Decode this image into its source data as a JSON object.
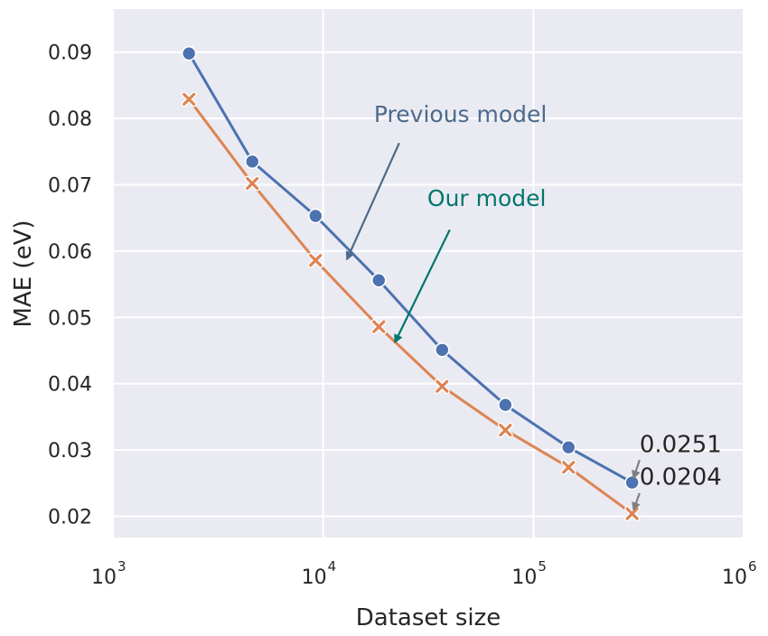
{
  "chart_data": {
    "type": "line",
    "title": "",
    "xlabel": "Dataset size",
    "ylabel": "MAE (eV)",
    "x_scale": "log",
    "xlim": [
      1000,
      1000000
    ],
    "ylim": [
      0.0168,
      0.0965
    ],
    "grid": true,
    "x_ticks": [
      {
        "value": 1000,
        "base": "10",
        "exp": "3"
      },
      {
        "value": 10000,
        "base": "10",
        "exp": "4"
      },
      {
        "value": 100000,
        "base": "10",
        "exp": "5"
      },
      {
        "value": 1000000,
        "base": "10",
        "exp": "6"
      }
    ],
    "y_ticks": [
      {
        "value": 0.02,
        "label": "0.02"
      },
      {
        "value": 0.03,
        "label": "0.03"
      },
      {
        "value": 0.04,
        "label": "0.04"
      },
      {
        "value": 0.05,
        "label": "0.05"
      },
      {
        "value": 0.06,
        "label": "0.06"
      },
      {
        "value": 0.07,
        "label": "0.07"
      },
      {
        "value": 0.08,
        "label": "0.08"
      },
      {
        "value": 0.09,
        "label": "0.09"
      }
    ],
    "x": [
      2300,
      4600,
      9200,
      18400,
      36800,
      73600,
      147000,
      295000
    ],
    "series": [
      {
        "name": "Previous model",
        "color": "#4c72b0",
        "marker": "circle",
        "values": [
          0.0898,
          0.0735,
          0.0653,
          0.0556,
          0.0451,
          0.0368,
          0.0304,
          0.0251
        ]
      },
      {
        "name": "Our model",
        "color": "#dd8452",
        "marker": "x",
        "values": [
          0.0829,
          0.0702,
          0.0586,
          0.0486,
          0.0396,
          0.033,
          0.0274,
          0.0204
        ]
      }
    ],
    "annotations": [
      {
        "text": "Previous model",
        "color": "#4c6a8c",
        "text_x": 45000,
        "text_y": 0.0795,
        "arrow_from_x": 23000,
        "arrow_from_y": 0.0763,
        "arrow_to_x": 13000,
        "arrow_to_y": 0.0588
      },
      {
        "text": "Our model",
        "color": "#00766c",
        "text_x": 60000,
        "text_y": 0.0668,
        "arrow_from_x": 40000,
        "arrow_from_y": 0.0632,
        "arrow_to_x": 22000,
        "arrow_to_y": 0.0463
      },
      {
        "text": "0.0251",
        "color": "#262626",
        "text_x": 320000,
        "text_y": 0.0297,
        "arrow_from_x": 320000,
        "arrow_from_y": 0.0285,
        "arrow_to_x": 300000,
        "arrow_to_y": 0.0258
      },
      {
        "text": "0.0204",
        "color": "#262626",
        "text_x": 320000,
        "text_y": 0.0248,
        "arrow_from_x": 320000,
        "arrow_from_y": 0.0235,
        "arrow_to_x": 300000,
        "arrow_to_y": 0.021
      }
    ]
  }
}
